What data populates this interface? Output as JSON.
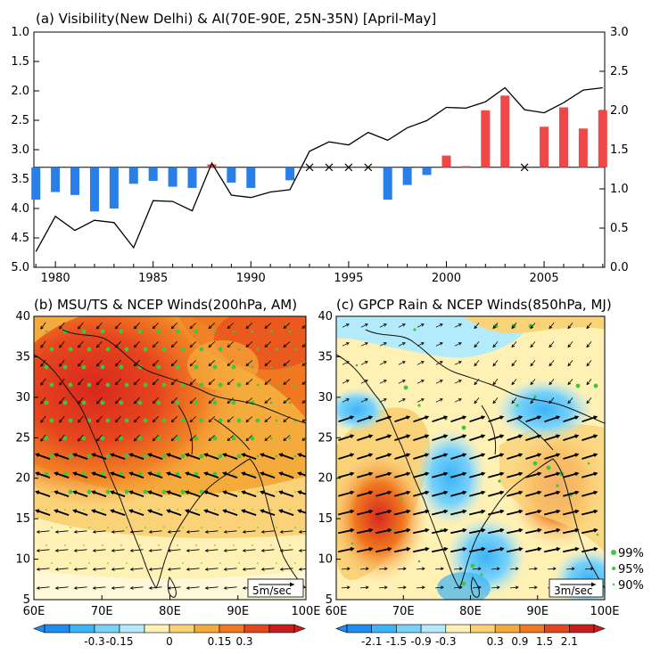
{
  "chart_data": [
    {
      "type": "bar",
      "title": "(a) Visibility(New Delhi) & AI(70E-90E, 25N-35N) [April-May]",
      "x_ticks": [
        "1980",
        "1985",
        "1990",
        "1995",
        "2000",
        "2005"
      ],
      "y_left_ticks": [
        "1.0",
        "1.5",
        "2.0",
        "2.5",
        "3.0",
        "3.5",
        "4.0",
        "4.5",
        "5.0"
      ],
      "y_right_ticks": [
        "3.0",
        "2.5",
        "2.0",
        "1.5",
        "1.0",
        "0.5",
        "0.0"
      ],
      "ylim_left": [
        5.0,
        1.0
      ],
      "ylim_right": [
        0.0,
        3.0
      ],
      "baseline_left": 3.3,
      "grid": false,
      "bars": {
        "years": [
          1979,
          1980,
          1981,
          1982,
          1983,
          1984,
          1985,
          1986,
          1987,
          1988,
          1989,
          1990,
          1991,
          1992,
          1993,
          1994,
          1995,
          1996,
          1997,
          1998,
          1999,
          2000,
          2001,
          2002,
          2003,
          2004,
          2005,
          2006,
          2007,
          2008
        ],
        "visibility": [
          3.85,
          3.72,
          3.77,
          4.05,
          4.0,
          3.58,
          3.53,
          3.63,
          3.65,
          3.25,
          3.56,
          3.65,
          null,
          3.52,
          null,
          null,
          null,
          null,
          3.85,
          3.6,
          3.43,
          3.1,
          3.28,
          2.33,
          2.08,
          null,
          2.61,
          2.28,
          2.64,
          2.33
        ],
        "missing_marker_years": [
          1993,
          1994,
          1995,
          1996,
          2004
        ],
        "positive_color": "#f04848",
        "negative_color": "#2a7ee8"
      },
      "line": {
        "years": [
          1979,
          1980,
          1981,
          1982,
          1983,
          1984,
          1985,
          1986,
          1987,
          1988,
          1989,
          1990,
          1991,
          1992,
          1993,
          1994,
          1995,
          1996,
          1997,
          1998,
          1999,
          2000,
          2001,
          2002,
          2003,
          2004,
          2005,
          2006,
          2007,
          2008
        ],
        "ai": [
          0.2,
          0.65,
          0.47,
          0.6,
          0.57,
          0.25,
          0.85,
          0.84,
          0.72,
          1.33,
          0.92,
          0.89,
          0.96,
          0.99,
          1.48,
          1.6,
          1.56,
          1.72,
          1.62,
          1.78,
          1.87,
          2.04,
          2.03,
          2.11,
          2.29,
          2.01,
          1.97,
          2.1,
          2.26,
          2.29
        ]
      }
    },
    {
      "type": "heatmap",
      "title": "(b) MSU/TS & NCEP Winds(200hPa, AM)",
      "x_ticks": [
        "60E",
        "70E",
        "80E",
        "90E",
        "100E"
      ],
      "y_ticks": [
        "5",
        "10",
        "15",
        "20",
        "25",
        "30",
        "35",
        "40"
      ],
      "xlim": [
        60,
        100
      ],
      "ylim": [
        5,
        40
      ],
      "colorbar_labels": [
        "-0.3",
        "-0.15",
        "0",
        "0.15",
        "0.3"
      ],
      "wind_scale_label": "5m/sec"
    },
    {
      "type": "heatmap",
      "title": "(c) GPCP Rain & NCEP Winds(850hPa, MJ)",
      "x_ticks": [
        "60E",
        "70E",
        "80E",
        "90E",
        "100E"
      ],
      "y_ticks": [
        "5",
        "10",
        "15",
        "20",
        "25",
        "30",
        "35",
        "40"
      ],
      "xlim": [
        60,
        100
      ],
      "ylim": [
        5,
        40
      ],
      "colorbar_labels": [
        "-2.1",
        "-1.5",
        "-0.9",
        "-0.3",
        "0.3",
        "0.9",
        "1.5",
        "2.1"
      ],
      "wind_scale_label": "3m/sec",
      "significance_legend": [
        "99%",
        "95%",
        "90%"
      ]
    }
  ],
  "colors": {
    "colorbar": [
      "#1e8cf0",
      "#3cb4f5",
      "#78d2fa",
      "#b4ebfa",
      "#fff0b4",
      "#fad278",
      "#f5aa3c",
      "#f07820",
      "#e6461e",
      "#c81e1e"
    ],
    "sig_dot": "#3cc83c"
  }
}
